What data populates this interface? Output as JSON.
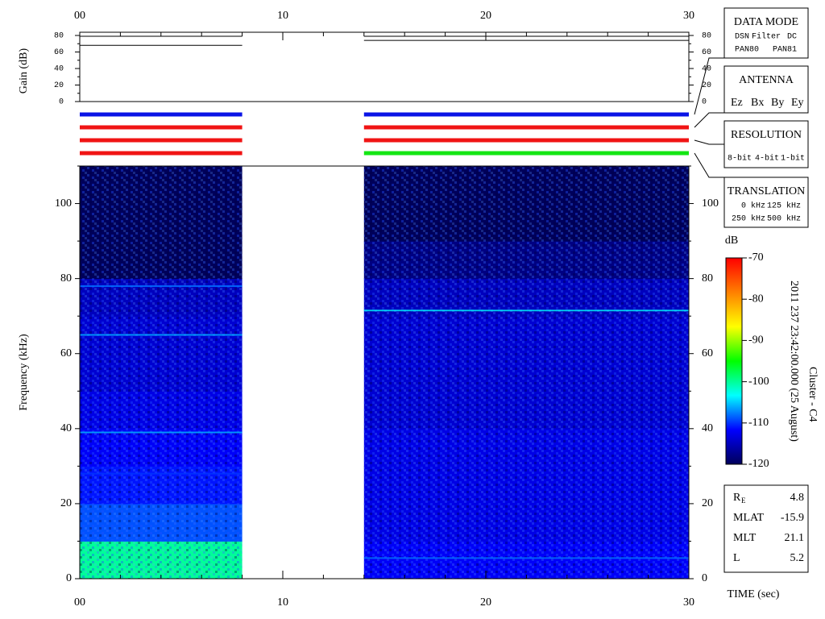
{
  "chart_data": {
    "type": "spectrogram",
    "x_label": "TIME (sec)",
    "y_label": "Frequency (kHz)",
    "xlim": [
      0,
      30
    ],
    "xticks": [
      {
        "value": 0,
        "label": "00"
      },
      10,
      20,
      30
    ],
    "xminorticks": [
      2,
      4,
      6,
      8,
      12,
      14,
      16,
      18,
      22,
      24,
      26,
      28
    ],
    "ylim": [
      0,
      110
    ],
    "yticks": [
      0,
      20,
      40,
      60,
      80,
      100
    ],
    "yminorticks": [
      10,
      30,
      50,
      70,
      90,
      110
    ],
    "gain": {
      "label": "Gain (dB)",
      "ylim": [
        0,
        80
      ],
      "yticks": [
        0,
        20,
        40,
        60,
        80
      ],
      "yminorticks": [
        10,
        30,
        50,
        70
      ],
      "traces": [
        {
          "t": [
            0,
            8
          ],
          "values": [
            79,
            68
          ]
        },
        {
          "t": [
            14,
            30
          ],
          "values": [
            79,
            74
          ]
        }
      ]
    },
    "mode_rows": [
      {
        "t": [
          0,
          8
        ],
        "colors": [
          "#0a14e6",
          "#f01414",
          "#f01414",
          "#f01414"
        ]
      },
      {
        "t": [
          14,
          30
        ],
        "colors": [
          "#0a14e6",
          "#f01414",
          "#f01414",
          "#14e614"
        ]
      }
    ],
    "freq_bins": [
      0,
      10,
      20,
      30,
      40,
      50,
      60,
      70,
      80,
      90,
      100,
      110
    ],
    "segments": [
      {
        "t": [
          0,
          8
        ],
        "levels": [
          -100,
          -109,
          -111,
          -112,
          -113,
          -114,
          -114,
          -115,
          -120,
          -120,
          -120
        ]
      },
      {
        "t": [
          14,
          30
        ],
        "levels": [
          -112,
          -113,
          -113,
          -113,
          -114,
          -114,
          -114,
          -115,
          -118,
          -120,
          -120
        ]
      }
    ],
    "lines": [
      {
        "t": [
          0,
          8
        ],
        "f": 78,
        "db": -108
      },
      {
        "t": [
          0,
          8
        ],
        "f": 65,
        "db": -106
      },
      {
        "t": [
          0,
          8
        ],
        "f": 39,
        "db": -106
      },
      {
        "t": [
          0,
          8
        ],
        "f": 28,
        "db": -110
      },
      {
        "t": [
          14,
          30
        ],
        "f": 71.5,
        "db": -104
      },
      {
        "t": [
          14,
          30
        ],
        "f": 5.5,
        "db": -108
      }
    ],
    "colorbar": {
      "label": "dB",
      "clim": [
        -120,
        -70
      ],
      "ticks": [
        -120,
        -110,
        -100,
        -90,
        -80,
        -70
      ],
      "colormap": [
        "#00005a",
        "#0000ff",
        "#00ffff",
        "#00ff00",
        "#ffff00",
        "#ff8000",
        "#ff0000"
      ]
    },
    "date_text": "2011 237 23:42:00.000 (25 August)",
    "spacecraft": "Cluster - C4",
    "legends": [
      {
        "title": "DATA MODE",
        "items": [
          {
            "name": "DSN",
            "color": "#e01010"
          },
          {
            "name": "Filter",
            "color": "#10d010"
          },
          {
            "name": "DC",
            "color": "#1010e0"
          },
          {
            "name": "PAN80",
            "color": "#000000"
          },
          {
            "name": "PAN81",
            "color": "#10c8d0"
          }
        ]
      },
      {
        "title": "ANTENNA",
        "items": [
          {
            "name": "Ez",
            "color": "#e01010"
          },
          {
            "name": "Bx",
            "color": "#10d010"
          },
          {
            "name": "By",
            "color": "#1010e0"
          },
          {
            "name": "Ey",
            "color": "#000000"
          }
        ]
      },
      {
        "title": "RESOLUTION",
        "items": [
          {
            "name": "8-bit",
            "color": "#e01010"
          },
          {
            "name": "4-bit",
            "color": "#10d010"
          },
          {
            "name": "1-bit",
            "color": "#1010e0"
          }
        ]
      },
      {
        "title": "TRANSLATION",
        "items": [
          {
            "name": "0 kHz",
            "color": "#e01010"
          },
          {
            "name": "125 kHz",
            "color": "#10d010"
          },
          {
            "name": "250 kHz",
            "color": "#1010e0"
          },
          {
            "name": "500 kHz",
            "color": "#000000"
          }
        ]
      }
    ],
    "orbit": [
      {
        "label": "R",
        "sub": "E",
        "value": 4.8
      },
      {
        "label": "MLAT",
        "value": -15.9
      },
      {
        "label": "MLT",
        "value": 21.1
      },
      {
        "label": "L",
        "value": 5.2
      }
    ]
  }
}
